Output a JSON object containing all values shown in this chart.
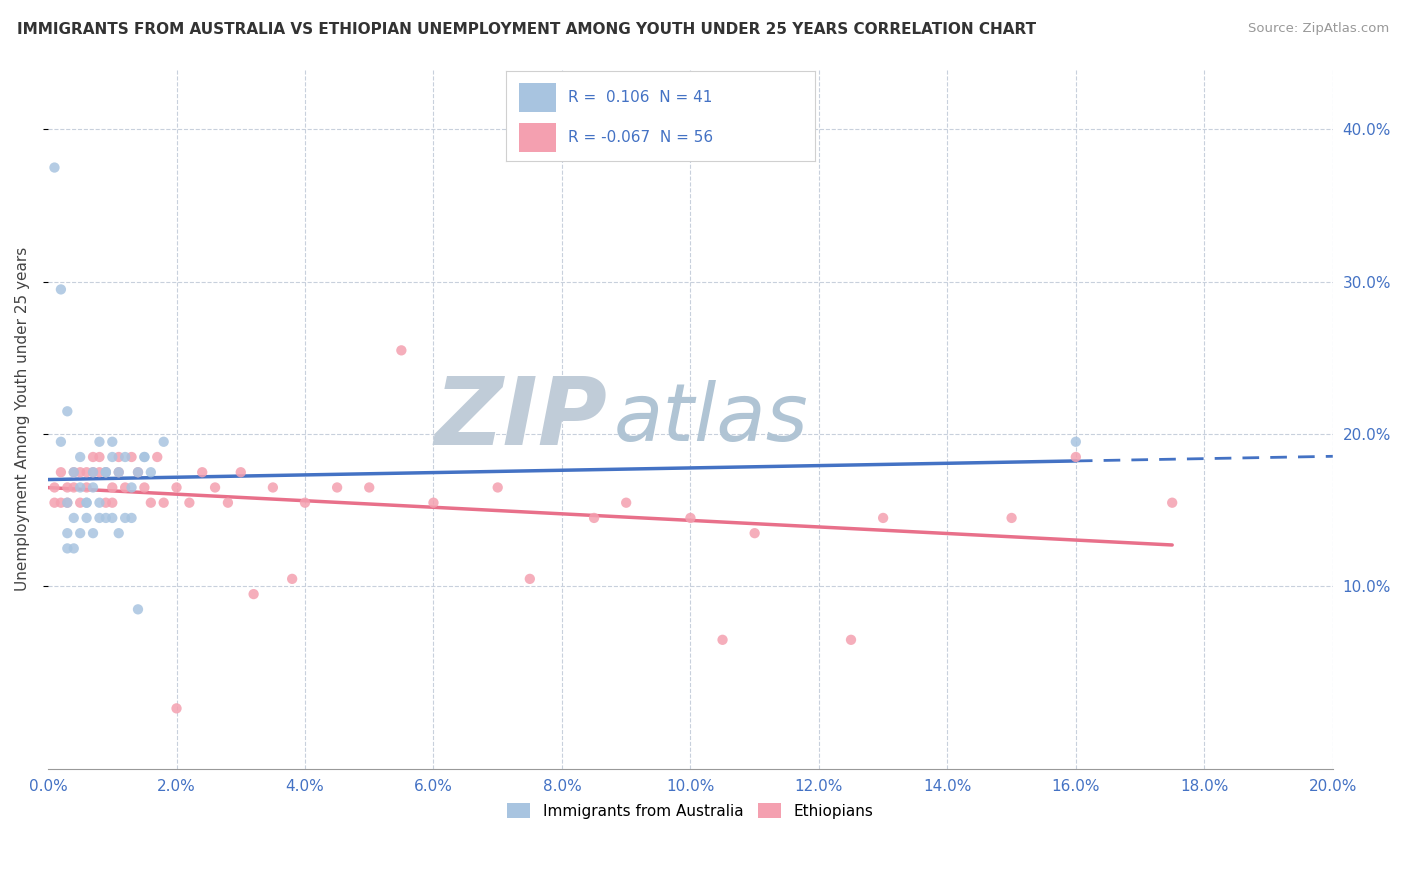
{
  "title": "IMMIGRANTS FROM AUSTRALIA VS ETHIOPIAN UNEMPLOYMENT AMONG YOUTH UNDER 25 YEARS CORRELATION CHART",
  "source": "Source: ZipAtlas.com",
  "ylabel": "Unemployment Among Youth under 25 years",
  "xlim": [
    0.0,
    0.2
  ],
  "ylim": [
    -0.02,
    0.44
  ],
  "xtick_vals": [
    0.0,
    0.02,
    0.04,
    0.06,
    0.08,
    0.1,
    0.12,
    0.14,
    0.16,
    0.18,
    0.2
  ],
  "ytick_vals": [
    0.1,
    0.2,
    0.3,
    0.4
  ],
  "r_australia": 0.106,
  "n_australia": 41,
  "r_ethiopia": -0.067,
  "n_ethiopia": 56,
  "color_australia": "#a8c4e0",
  "color_ethiopia": "#f4a0b0",
  "line_color_australia": "#4472c4",
  "line_color_ethiopia": "#e8708a",
  "watermark_zip_color": "#c8d8e8",
  "watermark_atlas_color": "#b0c8dc",
  "legend_label_australia": "Immigrants from Australia",
  "legend_label_ethiopia": "Ethiopians",
  "australia_x": [
    0.001,
    0.002,
    0.002,
    0.003,
    0.003,
    0.003,
    0.004,
    0.004,
    0.005,
    0.005,
    0.006,
    0.006,
    0.007,
    0.007,
    0.008,
    0.008,
    0.009,
    0.009,
    0.01,
    0.01,
    0.011,
    0.012,
    0.013,
    0.014,
    0.015,
    0.015,
    0.016,
    0.018,
    0.008,
    0.009,
    0.01,
    0.011,
    0.012,
    0.013,
    0.014,
    0.006,
    0.007,
    0.005,
    0.004,
    0.003,
    0.16
  ],
  "australia_y": [
    0.375,
    0.295,
    0.195,
    0.215,
    0.155,
    0.135,
    0.145,
    0.175,
    0.185,
    0.165,
    0.155,
    0.155,
    0.175,
    0.165,
    0.155,
    0.195,
    0.175,
    0.175,
    0.195,
    0.185,
    0.175,
    0.185,
    0.165,
    0.175,
    0.185,
    0.185,
    0.175,
    0.195,
    0.145,
    0.145,
    0.145,
    0.135,
    0.145,
    0.145,
    0.085,
    0.145,
    0.135,
    0.135,
    0.125,
    0.125,
    0.195
  ],
  "ethiopia_x": [
    0.001,
    0.001,
    0.002,
    0.002,
    0.003,
    0.003,
    0.004,
    0.004,
    0.005,
    0.005,
    0.006,
    0.006,
    0.007,
    0.007,
    0.008,
    0.008,
    0.009,
    0.009,
    0.01,
    0.01,
    0.011,
    0.011,
    0.012,
    0.013,
    0.014,
    0.015,
    0.016,
    0.017,
    0.018,
    0.02,
    0.022,
    0.024,
    0.026,
    0.03,
    0.035,
    0.04,
    0.05,
    0.06,
    0.07,
    0.085,
    0.1,
    0.11,
    0.13,
    0.15,
    0.16,
    0.09,
    0.105,
    0.075,
    0.055,
    0.045,
    0.028,
    0.032,
    0.038,
    0.175,
    0.125,
    0.02
  ],
  "ethiopia_y": [
    0.155,
    0.165,
    0.155,
    0.175,
    0.155,
    0.165,
    0.165,
    0.175,
    0.155,
    0.175,
    0.175,
    0.165,
    0.185,
    0.175,
    0.175,
    0.185,
    0.175,
    0.155,
    0.165,
    0.155,
    0.175,
    0.185,
    0.165,
    0.185,
    0.175,
    0.165,
    0.155,
    0.185,
    0.155,
    0.165,
    0.155,
    0.175,
    0.165,
    0.175,
    0.165,
    0.155,
    0.165,
    0.155,
    0.165,
    0.145,
    0.145,
    0.135,
    0.145,
    0.145,
    0.185,
    0.155,
    0.065,
    0.105,
    0.255,
    0.165,
    0.155,
    0.095,
    0.105,
    0.155,
    0.065,
    0.02
  ]
}
